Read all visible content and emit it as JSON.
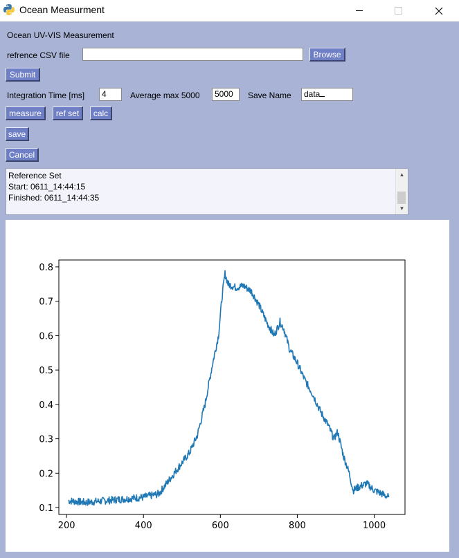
{
  "window": {
    "title": "Ocean Measurment",
    "controls": {
      "minimize": "—",
      "maximize": "☐",
      "close": "✕"
    }
  },
  "header": {
    "title": "Ocean UV-VIS Measurement"
  },
  "reference": {
    "label": "refrence CSV file",
    "value": "",
    "browse_label": "Browse"
  },
  "submit_label": "Submit",
  "settings": {
    "integration_label": "Integration Time [ms]",
    "integration_value": "4",
    "average_label": "Average max 5000",
    "average_value": "5000",
    "save_name_label": "Save Name",
    "save_name_value": "data"
  },
  "actions": {
    "measure_label": "measure",
    "refset_label": "ref set",
    "calc_label": "calc",
    "save_label": "save",
    "cancel_label": "Cancel"
  },
  "log": {
    "lines": [
      "Reference Set",
      "Start: 0611_14:44:15",
      "Finished: 0611_14:44:35"
    ]
  },
  "chart_data": {
    "type": "line",
    "title": "",
    "xlabel": "",
    "ylabel": "",
    "xlim": [
      180,
      1080
    ],
    "ylim": [
      0.08,
      0.82
    ],
    "xticks": [
      200,
      400,
      600,
      800,
      1000
    ],
    "yticks": [
      0.1,
      0.2,
      0.3,
      0.4,
      0.5,
      0.6,
      0.7,
      0.8
    ],
    "grid": false,
    "color": "#1f77b4",
    "series": [
      {
        "x": [
          205,
          250,
          300,
          350,
          400,
          440,
          460,
          480,
          500,
          520,
          540,
          560,
          580,
          595,
          605,
          612,
          620,
          640,
          660,
          680,
          700,
          720,
          740,
          755,
          765,
          780,
          800,
          820,
          840,
          860,
          880,
          895,
          905,
          920,
          935,
          945,
          960,
          980,
          1000,
          1020,
          1038
        ],
        "y": [
          0.12,
          0.115,
          0.12,
          0.125,
          0.13,
          0.14,
          0.17,
          0.2,
          0.23,
          0.26,
          0.31,
          0.4,
          0.52,
          0.6,
          0.72,
          0.78,
          0.75,
          0.74,
          0.745,
          0.73,
          0.69,
          0.64,
          0.6,
          0.64,
          0.62,
          0.56,
          0.52,
          0.47,
          0.43,
          0.38,
          0.34,
          0.3,
          0.32,
          0.25,
          0.2,
          0.15,
          0.16,
          0.17,
          0.15,
          0.14,
          0.13
        ]
      }
    ]
  }
}
